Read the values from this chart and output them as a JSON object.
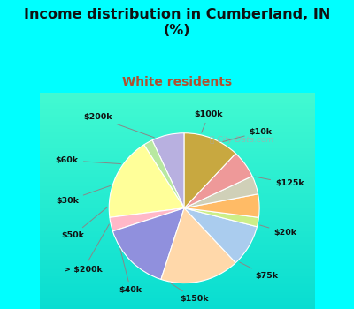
{
  "title": "Income distribution in Cumberland, IN\n(%)",
  "subtitle": "White residents",
  "title_color": "#111111",
  "subtitle_color": "#b05030",
  "background_color": "#00ffff",
  "labels": [
    "$100k",
    "$10k",
    "$125k",
    "$20k",
    "$75k",
    "$150k",
    "$40k",
    "> $200k",
    "$50k",
    "$30k",
    "$60k",
    "$200k"
  ],
  "values": [
    7,
    2,
    18,
    3,
    15,
    17,
    9,
    2,
    5,
    4,
    6,
    12
  ],
  "colors": [
    "#b8b0e0",
    "#b8e8a0",
    "#ffff99",
    "#ffb8c8",
    "#9090dd",
    "#ffd8aa",
    "#aaccee",
    "#ccee88",
    "#ffbb66",
    "#d0d0b8",
    "#ee9999",
    "#c8a840"
  ],
  "startangle": 90,
  "watermark": "City-Data.com"
}
